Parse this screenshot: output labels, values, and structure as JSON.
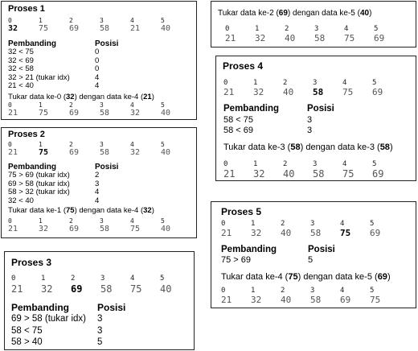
{
  "proses1": {
    "title": "Proses 1",
    "indices": [
      "0",
      "1",
      "2",
      "3",
      "4",
      "5"
    ],
    "values": [
      "32",
      "75",
      "69",
      "58",
      "21",
      "40"
    ],
    "hl": [
      0
    ],
    "hdr_pembanding": "Pembanding",
    "hdr_posisi": "Posisi",
    "comparisons": [
      {
        "c": "32 < 75",
        "p": "0"
      },
      {
        "c": "32 < 69",
        "p": "0"
      },
      {
        "c": "32 < 58",
        "p": "0"
      },
      {
        "c": "32 > 21 (tukar idx)",
        "p": "4"
      },
      {
        "c": "21 < 40",
        "p": "4"
      }
    ],
    "swap": {
      "pre": "Tukar data ke-0 (",
      "a": "32",
      "mid": ") dengan data ke-4 (",
      "b": "21",
      "post": ")"
    },
    "after_indices": [
      "0",
      "1",
      "2",
      "3",
      "4",
      "5"
    ],
    "after_values": [
      "21",
      "75",
      "69",
      "58",
      "32",
      "40"
    ]
  },
  "proses2": {
    "title": "Proses 2",
    "indices": [
      "0",
      "1",
      "2",
      "3",
      "4",
      "5"
    ],
    "values": [
      "21",
      "75",
      "69",
      "58",
      "32",
      "40"
    ],
    "hl": [
      1
    ],
    "hdr_pembanding": "Pembanding",
    "hdr_posisi": "Posisi",
    "comparisons": [
      {
        "c": "75 > 69 (tukar idx)",
        "p": "2"
      },
      {
        "c": "69 > 58 (tukar idx)",
        "p": "3"
      },
      {
        "c": "58 > 32 (tukar idx)",
        "p": "4"
      },
      {
        "c": "32 < 40",
        "p": "4"
      }
    ],
    "swap": {
      "pre": "Tukar data ke-1 (",
      "a": "75",
      "mid": ") dengan data ke-4 (",
      "b": "32",
      "post": ")"
    },
    "after_indices": [
      "0",
      "1",
      "2",
      "3",
      "4",
      "5"
    ],
    "after_values": [
      "21",
      "32",
      "69",
      "58",
      "75",
      "40"
    ]
  },
  "proses3": {
    "title": "Proses 3",
    "indices": [
      "0",
      "1",
      "2",
      "3",
      "4",
      "5"
    ],
    "values": [
      "21",
      "32",
      "69",
      "58",
      "75",
      "40"
    ],
    "hl": [
      2
    ],
    "hdr_pembanding": "Pembanding",
    "hdr_posisi": "Posisi",
    "comparisons": [
      {
        "c": "69 > 58 (tukar idx)",
        "p": "3"
      },
      {
        "c": "58 < 75",
        "p": "3"
      },
      {
        "c": "58 > 40",
        "p": "5"
      }
    ]
  },
  "swap3": {
    "swap": {
      "pre": "Tukar data ke-2 (",
      "a": "69",
      "mid": ") dengan data ke-5 (",
      "b": "40",
      "post": ")"
    },
    "after_indices": [
      "0",
      "1",
      "2",
      "3",
      "4",
      "5"
    ],
    "after_values": [
      "21",
      "32",
      "40",
      "58",
      "75",
      "69"
    ]
  },
  "proses4": {
    "title": "Proses 4",
    "indices": [
      "0",
      "1",
      "2",
      "3",
      "4",
      "5"
    ],
    "values": [
      "21",
      "32",
      "40",
      "58",
      "75",
      "69"
    ],
    "hl": [
      3
    ],
    "hdr_pembanding": "Pembanding",
    "hdr_posisi": "Posisi",
    "comparisons": [
      {
        "c": "58 < 75",
        "p": "3"
      },
      {
        "c": "58 < 69",
        "p": "3"
      }
    ],
    "swap": {
      "pre": "Tukar data ke-3 (",
      "a": "58",
      "mid": ") dengan data ke-3 (",
      "b": "58",
      "post": ")"
    },
    "after_indices": [
      "0",
      "1",
      "2",
      "3",
      "4",
      "5"
    ],
    "after_values": [
      "21",
      "32",
      "40",
      "58",
      "75",
      "69"
    ]
  },
  "proses5": {
    "title": "Proses 5",
    "indices": [
      "0",
      "1",
      "2",
      "3",
      "4",
      "5"
    ],
    "values": [
      "21",
      "32",
      "40",
      "58",
      "75",
      "69"
    ],
    "hl": [
      4
    ],
    "hdr_pembanding": "Pembanding",
    "hdr_posisi": "Posisi",
    "comparisons": [
      {
        "c": "75 > 69",
        "p": "5"
      }
    ],
    "swap": {
      "pre": "Tukar data ke-4 (",
      "a": "75",
      "mid": ") dengan data ke-5 (",
      "b": "69",
      "post": ")"
    },
    "after_indices": [
      "0",
      "1",
      "2",
      "3",
      "4",
      "5"
    ],
    "after_values": [
      "21",
      "32",
      "40",
      "58",
      "69",
      "75"
    ]
  }
}
